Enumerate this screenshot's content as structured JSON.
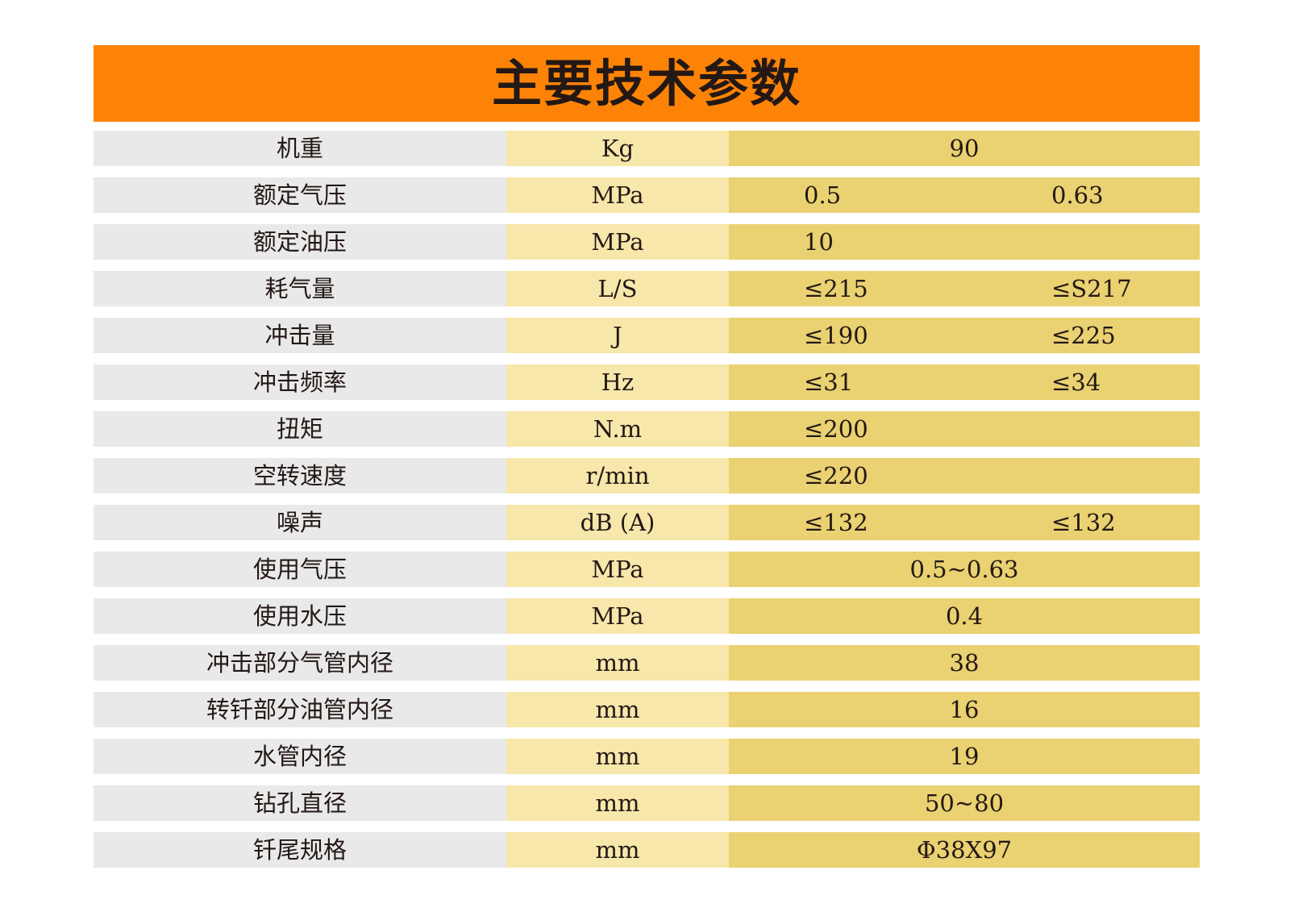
{
  "title": "主要技术参数",
  "rows": [
    {
      "name": "机重",
      "unit": "Kg",
      "layout": "single",
      "values": [
        "90"
      ]
    },
    {
      "name": "额定气压",
      "unit": "MPa",
      "layout": "pair",
      "values": [
        "0.5",
        "0.63"
      ]
    },
    {
      "name": "额定油压",
      "unit": "MPa",
      "layout": "left",
      "values": [
        "10"
      ]
    },
    {
      "name": "耗气量",
      "unit": "L/S",
      "layout": "pair",
      "values": [
        "≤215",
        "≤S217"
      ]
    },
    {
      "name": "冲击量",
      "unit": "J",
      "layout": "pair",
      "values": [
        "≤190",
        "≤225"
      ]
    },
    {
      "name": "冲击频率",
      "unit": "Hz",
      "layout": "pair",
      "values": [
        "≤31",
        "≤34"
      ]
    },
    {
      "name": "扭矩",
      "unit": "N.m",
      "layout": "left",
      "values": [
        "≤200"
      ]
    },
    {
      "name": "空转速度",
      "unit": "r/min",
      "layout": "left",
      "values": [
        "≤220"
      ]
    },
    {
      "name": "噪声",
      "unit": "dB (A)",
      "layout": "pair",
      "values": [
        "≤132",
        "≤132"
      ]
    },
    {
      "name": "使用气压",
      "unit": "MPa",
      "layout": "single",
      "values": [
        "0.5~0.63"
      ]
    },
    {
      "name": "使用水压",
      "unit": "MPa",
      "layout": "single",
      "values": [
        "0.4"
      ]
    },
    {
      "name": "冲击部分气管内径",
      "unit": "mm",
      "layout": "single",
      "values": [
        "38"
      ]
    },
    {
      "name": "转钎部分油管内径",
      "unit": "mm",
      "layout": "single",
      "values": [
        "16"
      ]
    },
    {
      "name": "水管内径",
      "unit": "mm",
      "layout": "single",
      "values": [
        "19"
      ]
    },
    {
      "name": "钻孔直径",
      "unit": "mm",
      "layout": "single",
      "values": [
        "50~80"
      ]
    },
    {
      "name": "钎尾规格",
      "unit": "mm",
      "layout": "single",
      "values": [
        "Φ38X97"
      ]
    }
  ],
  "colors": {
    "title_bar": "#fd8307",
    "name_column": "#e9e9e9",
    "unit_column": "#f8e7aa",
    "value_column": "#ead171",
    "text": "#231815"
  }
}
